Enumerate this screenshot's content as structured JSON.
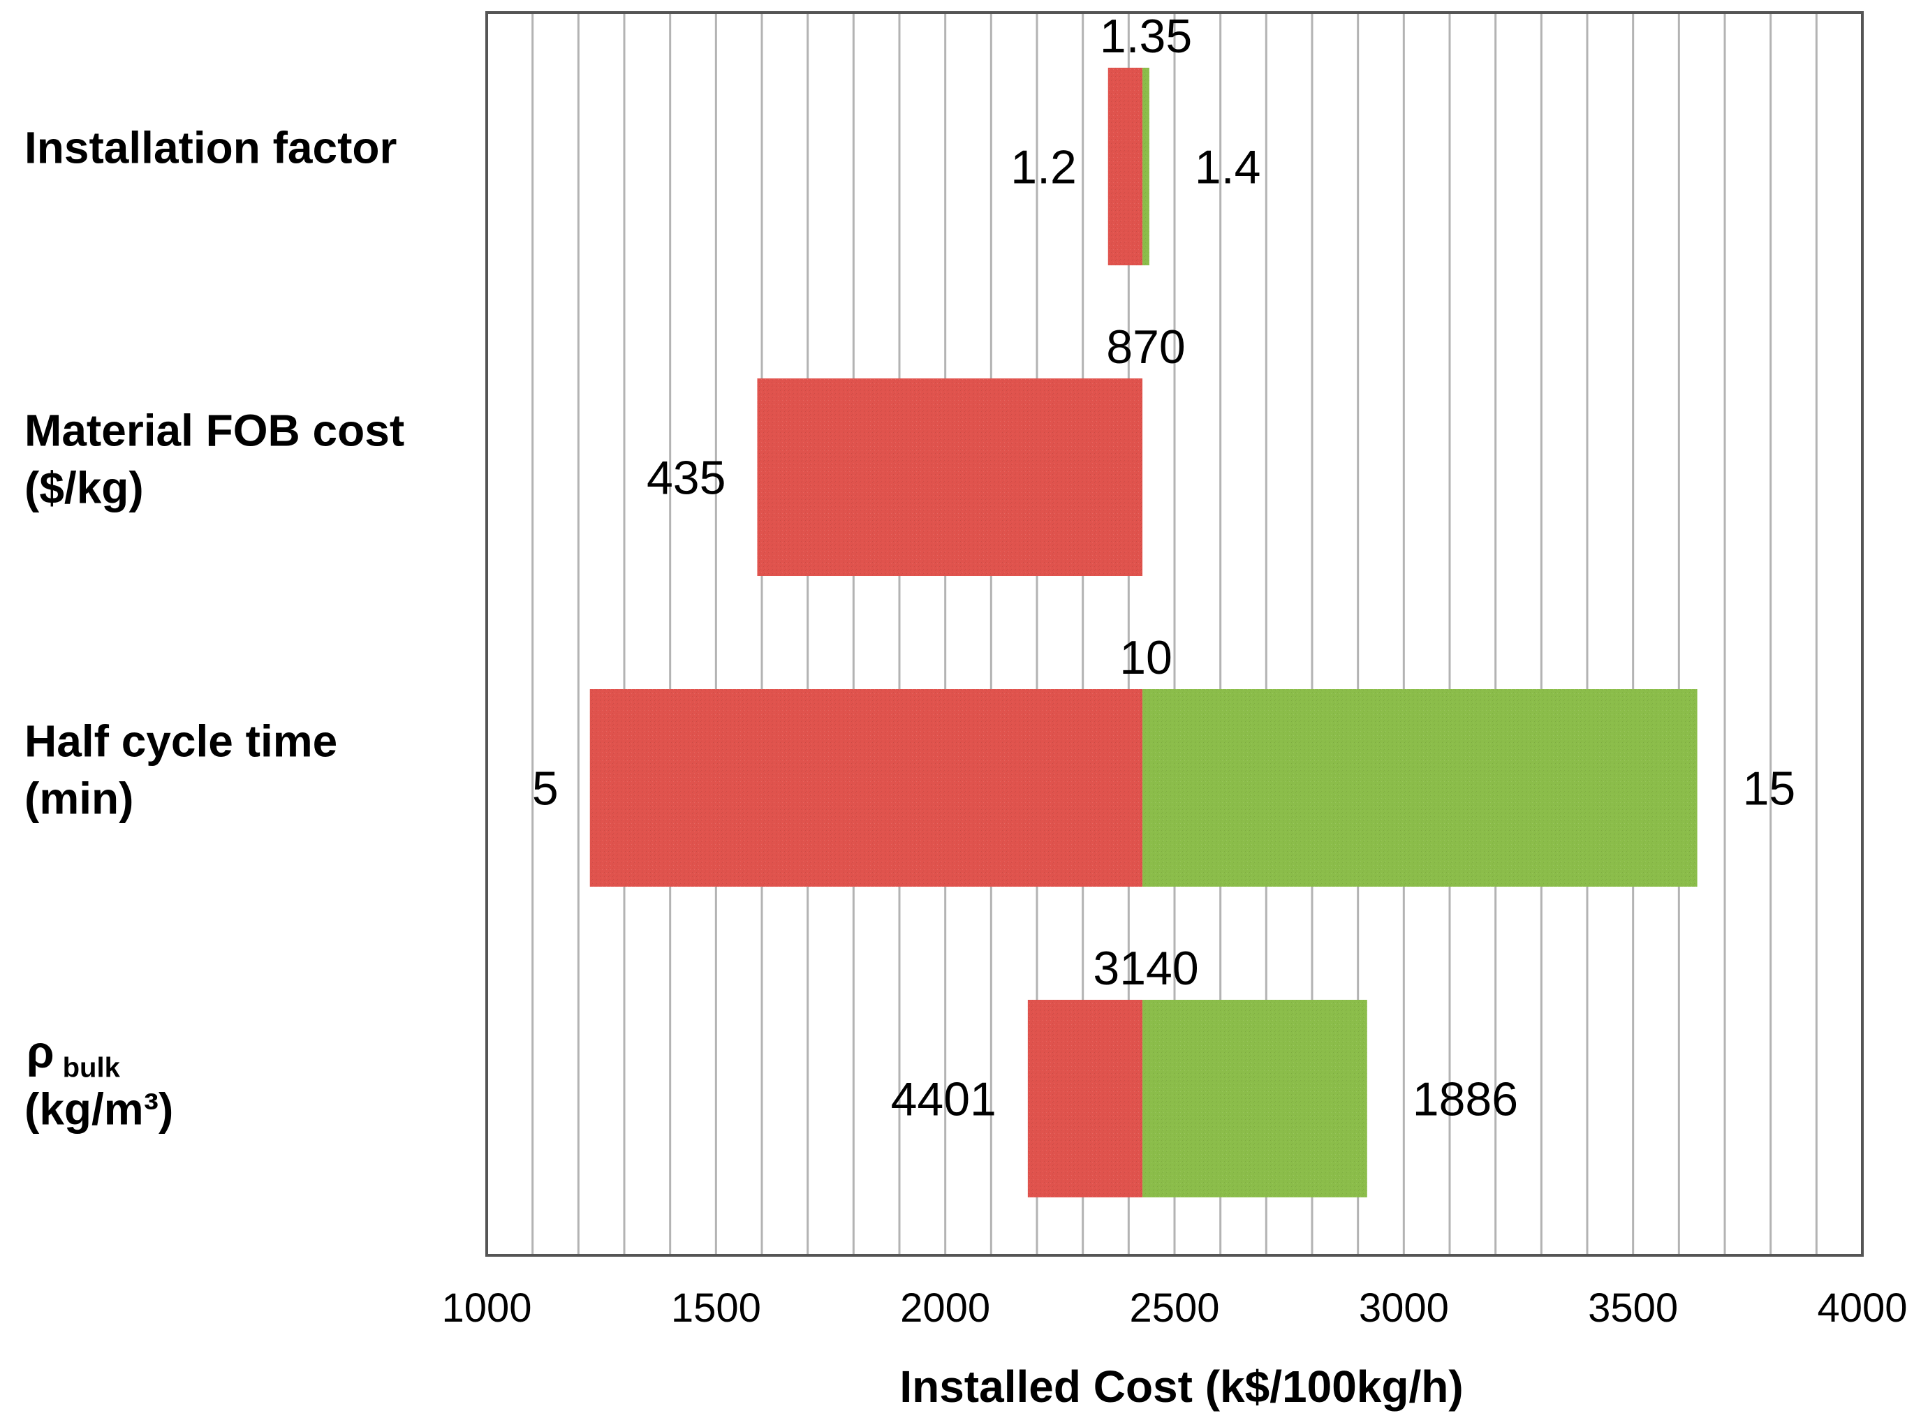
{
  "chart_data": {
    "type": "bar",
    "subtype": "tornado",
    "xlabel": "Installed Cost (k$/100kg/h)",
    "xlim": [
      1000,
      4000
    ],
    "xticks": [
      "1000",
      "1500",
      "2000",
      "2500",
      "3000",
      "3500",
      "4000"
    ],
    "minor_grid_step": 100,
    "base_value": 2430,
    "colors": {
      "low": "#e0534d",
      "high": "#8bbd4a",
      "grid": "#b3b3b3",
      "frame": "#555555"
    },
    "categories": [
      {
        "label_lines": [
          "Installation factor"
        ],
        "label_sub": "",
        "base_label": "1.35",
        "low": {
          "value": 2355,
          "label": "1.2"
        },
        "high": {
          "value": 2445,
          "label": "1.4"
        }
      },
      {
        "label_lines": [
          "Material FOB cost",
          "($/kg)"
        ],
        "label_sub": "",
        "base_label": "870",
        "low": {
          "value": 1590,
          "label": "435"
        },
        "high": {
          "value": 2430,
          "label": ""
        }
      },
      {
        "label_lines": [
          "Half cycle  time",
          "(min)"
        ],
        "label_sub": "",
        "base_label": "10",
        "low": {
          "value": 1225,
          "label": "5"
        },
        "high": {
          "value": 3640,
          "label": "15"
        }
      },
      {
        "label_lines": [
          "ρ",
          "(kg/m³)"
        ],
        "label_sub": "bulk",
        "base_label": "3140",
        "low": {
          "value": 2180,
          "label": "4401"
        },
        "high": {
          "value": 2920,
          "label": "1886"
        }
      }
    ]
  }
}
